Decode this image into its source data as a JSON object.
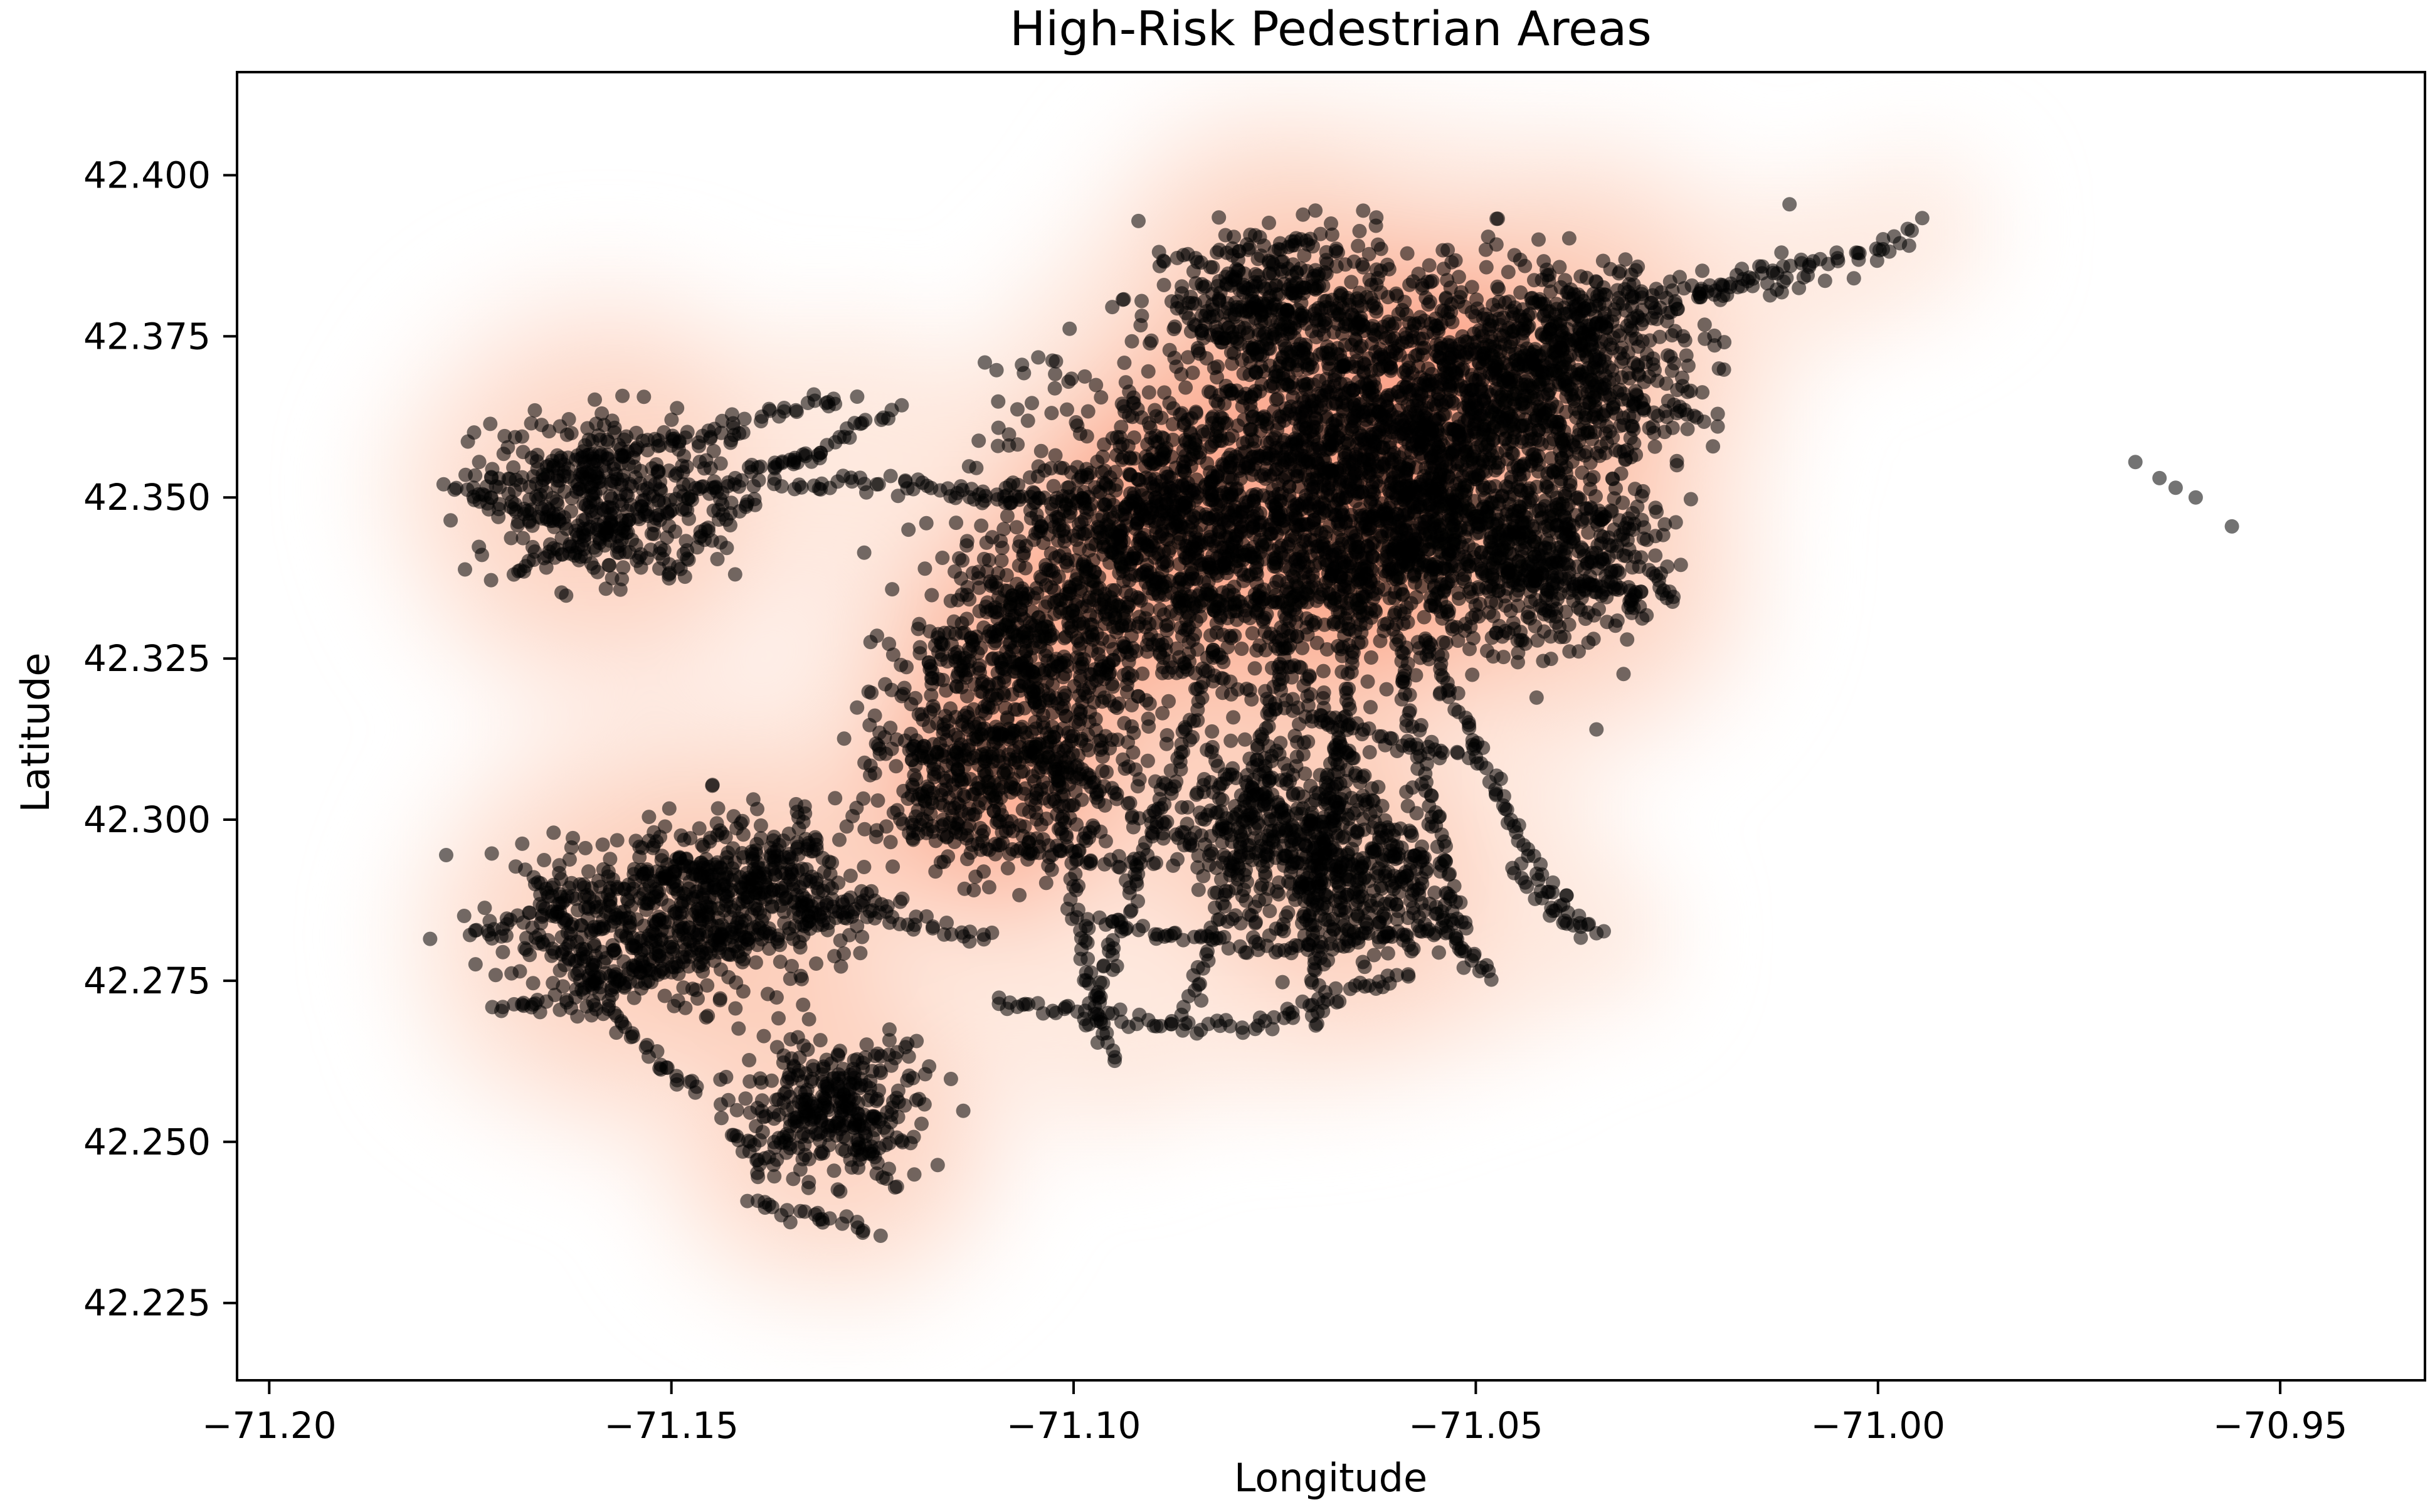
{
  "chart_data": {
    "type": "scatter",
    "title": "High-Risk Pedestrian Areas",
    "xlabel": "Longitude",
    "ylabel": "Latitude",
    "xlim": [
      -71.204,
      -70.932
    ],
    "ylim": [
      42.213,
      42.416
    ],
    "xticks": [
      -71.2,
      -71.15,
      -71.1,
      -71.05,
      -71.0,
      -70.95
    ],
    "xtick_labels": [
      "−71.20",
      "−71.15",
      "−71.10",
      "−71.05",
      "−71.00",
      "−70.95"
    ],
    "yticks": [
      42.225,
      42.25,
      42.275,
      42.3,
      42.325,
      42.35,
      42.375,
      42.4
    ],
    "ytick_labels": [
      "42.225",
      "42.250",
      "42.275",
      "42.300",
      "42.325",
      "42.350",
      "42.375",
      "42.400"
    ],
    "grid": false,
    "legend": "none",
    "overlay": "kernel-density",
    "density_colormap": [
      "#fee9df",
      "#fcc3ab",
      "#fc9474",
      "#f5593f",
      "#e12a24"
    ],
    "point_color": "#000000",
    "density_centers": [
      {
        "x": -71.076,
        "y": 42.349,
        "weight": 1.0
      },
      {
        "x": -71.063,
        "y": 42.362,
        "weight": 0.9
      },
      {
        "x": -71.05,
        "y": 42.362,
        "weight": 0.75
      },
      {
        "x": -71.092,
        "y": 42.342,
        "weight": 0.55
      },
      {
        "x": -71.06,
        "y": 42.342,
        "weight": 0.6
      },
      {
        "x": -71.105,
        "y": 42.325,
        "weight": 0.45
      },
      {
        "x": -71.11,
        "y": 42.305,
        "weight": 0.4
      },
      {
        "x": -71.155,
        "y": 42.283,
        "weight": 0.35
      },
      {
        "x": -71.14,
        "y": 42.288,
        "weight": 0.3
      },
      {
        "x": -71.158,
        "y": 42.35,
        "weight": 0.35
      },
      {
        "x": -71.038,
        "y": 42.373,
        "weight": 0.35
      },
      {
        "x": -71.075,
        "y": 42.3,
        "weight": 0.3
      },
      {
        "x": -71.065,
        "y": 42.29,
        "weight": 0.25
      },
      {
        "x": -71.04,
        "y": 42.34,
        "weight": 0.3
      },
      {
        "x": -71.13,
        "y": 42.255,
        "weight": 0.2
      },
      {
        "x": -71.075,
        "y": 42.382,
        "weight": 0.2
      }
    ],
    "paths": [
      {
        "points": [
          [
            -71.178,
            42.352
          ],
          [
            -71.162,
            42.345
          ],
          [
            -71.15,
            42.34
          ],
          [
            -71.135,
            42.355
          ],
          [
            -71.122,
            42.364
          ]
        ]
      },
      {
        "points": [
          [
            -71.175,
            42.35
          ],
          [
            -71.16,
            42.356
          ],
          [
            -71.145,
            42.36
          ],
          [
            -71.128,
            42.366
          ]
        ]
      },
      {
        "points": [
          [
            -71.17,
            42.338
          ],
          [
            -71.158,
            42.345
          ],
          [
            -71.145,
            42.352
          ],
          [
            -71.132,
            42.357
          ]
        ]
      },
      {
        "points": [
          [
            -71.135,
            42.352
          ],
          [
            -71.12,
            42.352
          ],
          [
            -71.105,
            42.35
          ],
          [
            -71.09,
            42.348
          ],
          [
            -71.078,
            42.346
          ]
        ]
      },
      {
        "points": [
          [
            -71.088,
            42.38
          ],
          [
            -71.075,
            42.378
          ],
          [
            -71.062,
            42.376
          ],
          [
            -71.052,
            42.372
          ]
        ]
      },
      {
        "points": [
          [
            -71.085,
            42.376
          ],
          [
            -71.072,
            42.372
          ],
          [
            -71.06,
            42.37
          ]
        ]
      },
      {
        "points": [
          [
            -71.045,
            42.37
          ],
          [
            -71.035,
            42.376
          ],
          [
            -71.025,
            42.38
          ],
          [
            -71.015,
            42.385
          ],
          [
            -71.0,
            42.388
          ],
          [
            -70.995,
            42.392
          ]
        ]
      },
      {
        "points": [
          [
            -71.045,
            42.372
          ],
          [
            -71.035,
            42.366
          ],
          [
            -71.028,
            42.364
          ],
          [
            -71.02,
            42.362
          ]
        ]
      },
      {
        "points": [
          [
            -71.04,
            42.378
          ],
          [
            -71.03,
            42.382
          ],
          [
            -71.02,
            42.382
          ],
          [
            -71.008,
            42.384
          ]
        ]
      },
      {
        "points": [
          [
            -71.1,
            42.35
          ],
          [
            -71.09,
            42.336
          ],
          [
            -71.08,
            42.333
          ],
          [
            -71.068,
            42.335
          ],
          [
            -71.058,
            42.342
          ],
          [
            -71.052,
            42.35
          ]
        ]
      },
      {
        "points": [
          [
            -71.07,
            42.366
          ],
          [
            -71.06,
            42.362
          ],
          [
            -71.05,
            42.36
          ]
        ]
      },
      {
        "points": [
          [
            -71.095,
            42.345
          ],
          [
            -71.08,
            42.355
          ],
          [
            -71.066,
            42.36
          ]
        ]
      },
      {
        "points": [
          [
            -71.06,
            42.352
          ],
          [
            -71.05,
            42.348
          ],
          [
            -71.04,
            42.346
          ],
          [
            -71.03,
            42.346
          ]
        ]
      },
      {
        "points": [
          [
            -71.058,
            42.34
          ],
          [
            -71.045,
            42.338
          ],
          [
            -71.035,
            42.336
          ],
          [
            -71.025,
            42.335
          ]
        ]
      },
      {
        "points": [
          [
            -71.108,
            42.335
          ],
          [
            -71.105,
            42.32
          ],
          [
            -71.102,
            42.305
          ],
          [
            -71.1,
            42.29
          ],
          [
            -71.098,
            42.275
          ],
          [
            -71.095,
            42.262
          ]
        ]
      },
      {
        "points": [
          [
            -71.08,
            42.335
          ],
          [
            -71.084,
            42.32
          ],
          [
            -71.088,
            42.305
          ],
          [
            -71.092,
            42.292
          ],
          [
            -71.095,
            42.28
          ],
          [
            -71.098,
            42.268
          ]
        ]
      },
      {
        "points": [
          [
            -71.072,
            42.335
          ],
          [
            -71.075,
            42.318
          ],
          [
            -71.078,
            42.3
          ],
          [
            -71.082,
            42.285
          ],
          [
            -71.086,
            42.27
          ]
        ]
      },
      {
        "points": [
          [
            -71.065,
            42.335
          ],
          [
            -71.066,
            42.318
          ],
          [
            -71.068,
            42.3
          ],
          [
            -71.07,
            42.285
          ],
          [
            -71.07,
            42.268
          ]
        ]
      },
      {
        "points": [
          [
            -71.06,
            42.332
          ],
          [
            -71.058,
            42.315
          ],
          [
            -71.055,
            42.3
          ],
          [
            -71.053,
            42.288
          ],
          [
            -71.051,
            42.278
          ]
        ]
      },
      {
        "points": [
          [
            -71.078,
            42.333
          ],
          [
            -71.068,
            42.315
          ],
          [
            -71.062,
            42.3
          ],
          [
            -71.055,
            42.285
          ],
          [
            -71.048,
            42.275
          ]
        ]
      },
      {
        "points": [
          [
            -71.056,
            42.328
          ],
          [
            -71.05,
            42.312
          ],
          [
            -71.045,
            42.298
          ],
          [
            -71.04,
            42.288
          ],
          [
            -71.036,
            42.282
          ]
        ]
      },
      {
        "points": [
          [
            -71.15,
            42.294
          ],
          [
            -71.14,
            42.29
          ],
          [
            -71.13,
            42.286
          ],
          [
            -71.12,
            42.284
          ],
          [
            -71.11,
            42.282
          ]
        ]
      },
      {
        "points": [
          [
            -71.175,
            42.282
          ],
          [
            -71.165,
            42.286
          ],
          [
            -71.155,
            42.29
          ],
          [
            -71.145,
            42.293
          ],
          [
            -71.132,
            42.296
          ]
        ]
      },
      {
        "points": [
          [
            -71.172,
            42.27
          ],
          [
            -71.16,
            42.274
          ],
          [
            -71.148,
            42.278
          ],
          [
            -71.135,
            42.283
          ],
          [
            -71.122,
            42.288
          ]
        ]
      },
      {
        "points": [
          [
            -71.168,
            42.292
          ],
          [
            -71.162,
            42.282
          ],
          [
            -71.158,
            42.272
          ],
          [
            -71.152,
            42.262
          ],
          [
            -71.146,
            42.258
          ]
        ]
      },
      {
        "points": [
          [
            -71.11,
            42.272
          ],
          [
            -71.1,
            42.27
          ],
          [
            -71.088,
            42.268
          ],
          [
            -71.078,
            42.268
          ],
          [
            -71.068,
            42.272
          ],
          [
            -71.058,
            42.276
          ]
        ]
      },
      {
        "points": [
          [
            -71.12,
            42.3
          ],
          [
            -71.11,
            42.296
          ],
          [
            -71.1,
            42.294
          ],
          [
            -71.09,
            42.293
          ]
        ]
      },
      {
        "points": [
          [
            -71.14,
            42.245
          ],
          [
            -71.135,
            42.252
          ],
          [
            -71.13,
            42.258
          ],
          [
            -71.125,
            42.262
          ],
          [
            -71.12,
            42.266
          ]
        ]
      },
      {
        "points": [
          [
            -71.14,
            42.24
          ],
          [
            -71.132,
            42.238
          ],
          [
            -71.125,
            42.236
          ]
        ]
      },
      {
        "points": [
          [
            -71.132,
            42.262
          ],
          [
            -71.128,
            42.255
          ],
          [
            -71.125,
            42.248
          ],
          [
            -71.122,
            42.242
          ]
        ]
      },
      {
        "points": [
          [
            -71.09,
            42.326
          ],
          [
            -71.08,
            42.32
          ],
          [
            -71.07,
            42.316
          ],
          [
            -71.06,
            42.312
          ],
          [
            -71.05,
            42.31
          ]
        ]
      },
      {
        "points": [
          [
            -71.125,
            42.312
          ],
          [
            -71.115,
            42.31
          ],
          [
            -71.105,
            42.31
          ],
          [
            -71.095,
            42.312
          ]
        ]
      },
      {
        "points": [
          [
            -71.11,
            42.315
          ],
          [
            -71.098,
            42.306
          ],
          [
            -71.088,
            42.298
          ],
          [
            -71.08,
            42.292
          ]
        ]
      },
      {
        "points": [
          [
            -71.045,
            42.292
          ],
          [
            -71.04,
            42.286
          ],
          [
            -71.035,
            42.282
          ]
        ]
      },
      {
        "points": [
          [
            -71.098,
            42.285
          ],
          [
            -71.088,
            42.282
          ],
          [
            -71.078,
            42.28
          ],
          [
            -71.066,
            42.281
          ],
          [
            -71.055,
            42.283
          ]
        ]
      }
    ],
    "isolated_points": [
      [
        -70.968,
        42.3555
      ],
      [
        -70.965,
        42.353
      ],
      [
        -70.963,
        42.3515
      ],
      [
        -70.9605,
        42.35
      ],
      [
        -70.956,
        42.3455
      ],
      [
        -71.064,
        42.3945
      ],
      [
        -71.068,
        42.3925
      ],
      [
        -71.011,
        42.3955
      ],
      [
        -71.18,
        42.2815
      ],
      [
        -71.178,
        42.2945
      ],
      [
        -71.003,
        42.384
      ],
      [
        -70.998,
        42.3905
      ],
      [
        -71.035,
        42.314
      ],
      [
        -71.025,
        42.355
      ],
      [
        -71.012,
        42.388
      ]
    ]
  }
}
